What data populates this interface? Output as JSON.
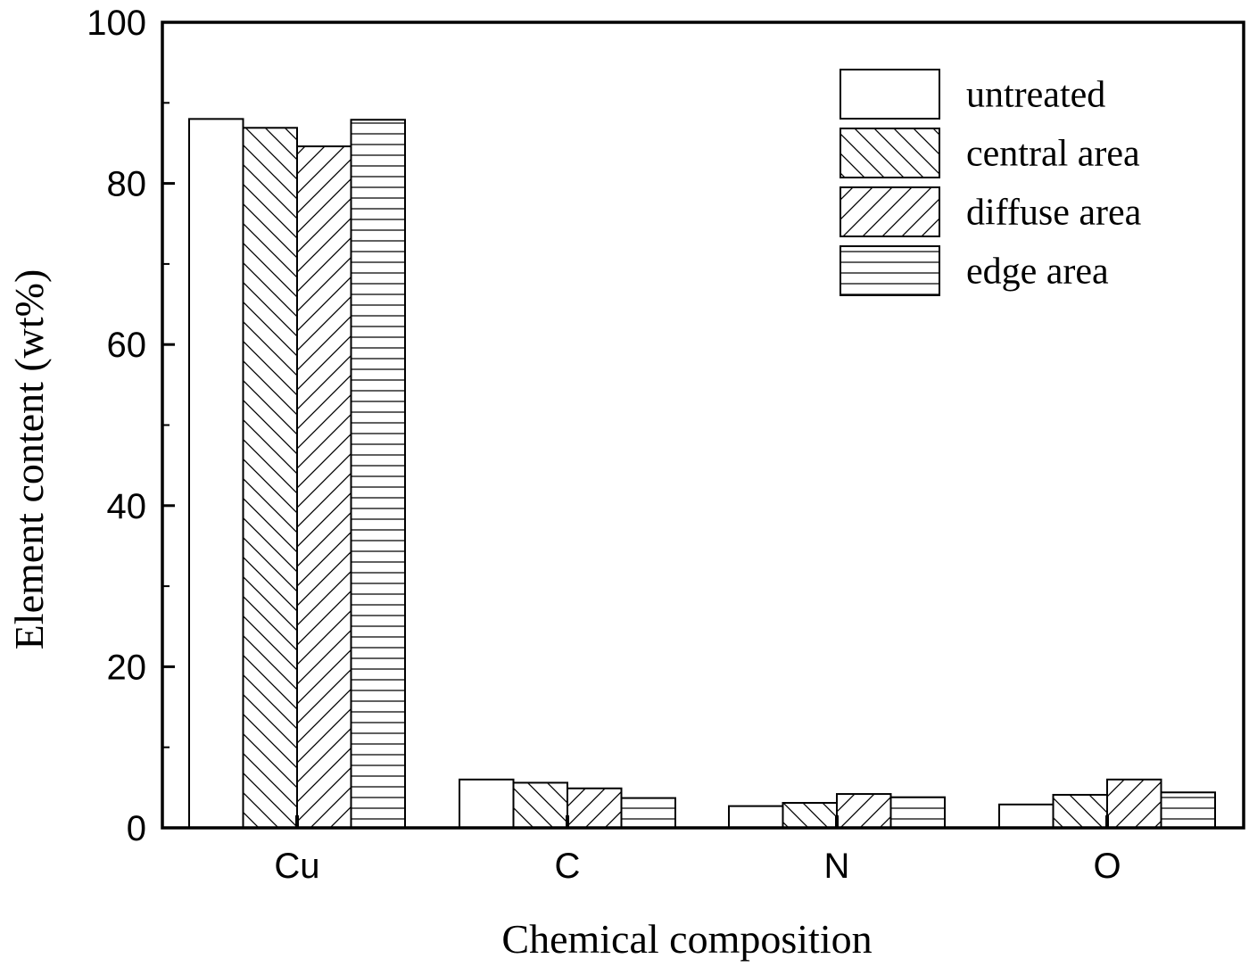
{
  "chart_data": {
    "type": "bar",
    "xlabel": "Chemical composition",
    "ylabel": "Element content (wt%)",
    "ylim": [
      0,
      100
    ],
    "yticks": [
      0,
      20,
      40,
      60,
      80,
      100
    ],
    "categories": [
      "Cu",
      "C",
      "N",
      "O"
    ],
    "legend_position": "top-right",
    "series": [
      {
        "name": "untreated",
        "pattern": "none",
        "values": [
          88.0,
          6.0,
          2.7,
          2.9
        ]
      },
      {
        "name": "central area",
        "pattern": "backslash",
        "values": [
          86.9,
          5.6,
          3.1,
          4.1
        ]
      },
      {
        "name": "diffuse area",
        "pattern": "slash",
        "values": [
          84.6,
          4.9,
          4.2,
          6.0
        ]
      },
      {
        "name": "edge area",
        "pattern": "horizontal",
        "values": [
          87.9,
          3.7,
          3.8,
          4.4
        ]
      }
    ],
    "bar_edge_color": "#000000",
    "bar_fill_color": "#ffffff"
  }
}
